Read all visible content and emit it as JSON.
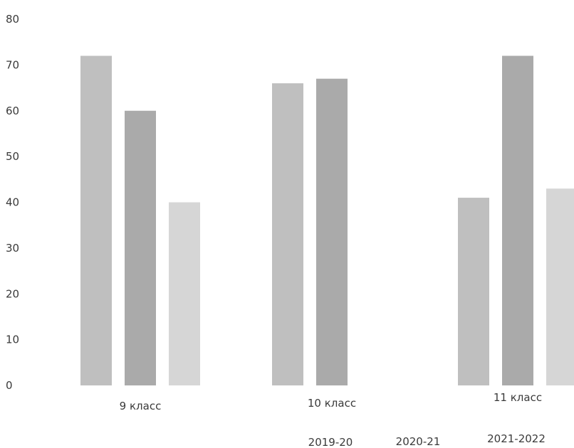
{
  "chart_data": {
    "type": "bar",
    "categories": [
      "9 класс",
      "10 класс",
      "11 класс"
    ],
    "series": [
      {
        "name": "2019-20",
        "values": [
          72,
          66,
          41
        ],
        "color": "#a9a9a9"
      },
      {
        "name": "2020-21",
        "values": [
          60,
          67,
          72
        ],
        "color": "#8e8e8e"
      },
      {
        "name": "2021-2022",
        "values": [
          40,
          0,
          43
        ],
        "color": "#c8c8c8"
      }
    ],
    "ylim": [
      0,
      80
    ],
    "yticks": [
      0,
      10,
      20,
      30,
      40,
      50,
      60,
      70,
      80
    ],
    "grid": false,
    "legend_position": "bottom"
  }
}
